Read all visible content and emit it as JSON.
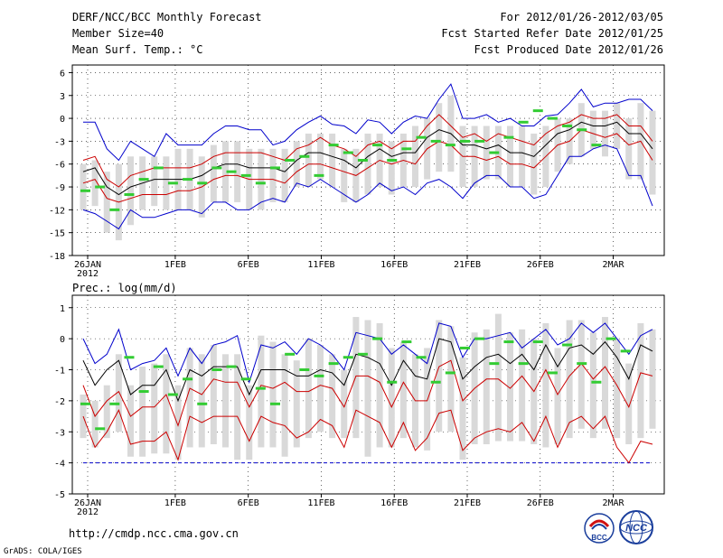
{
  "header": {
    "title": "DERF/NCC/BCC Monthly Forecast",
    "member_size": "Member Size=40",
    "variable": "Mean Surf. Temp.: °C",
    "period": "For 2012/01/26-2012/03/05",
    "start_date": "Fcst Started Refer Date 2012/01/25",
    "produced": "Fcst Produced Date 2012/01/26"
  },
  "footer": {
    "url": "http://cmdp.ncc.cma.gov.cn",
    "grads": "GrADS: COLA/IGES",
    "logo_bcc_text": "BCC",
    "logo_ncc_text": "NCC"
  },
  "colors": {
    "max_min": "#0000cc",
    "pct": "#cc0000",
    "mean": "#000000",
    "box": "#d9d9d9",
    "obs": "#33cc33",
    "grid": "#000000"
  },
  "chart_data": [
    {
      "type": "line",
      "title": "Mean Surf. Temp.: °C",
      "x_tick_labels": [
        "26JAN\n2012",
        "1FEB",
        "6FEB",
        "11FEB",
        "16FEB",
        "21FEB",
        "26FEB",
        "2MAR"
      ],
      "x_tick_days": [
        0,
        6,
        11,
        16,
        21,
        26,
        31,
        36
      ],
      "ylim": [
        -18,
        7
      ],
      "y_ticks": [
        6,
        3,
        0,
        -3,
        -6,
        -9,
        -12,
        -15,
        -18
      ],
      "days": 40,
      "series": [
        {
          "name": "max",
          "values": [
            -0.5,
            -0.5,
            -4,
            -5.5,
            -3,
            -4,
            -5,
            -2,
            -3.5,
            -3.5,
            -3.5,
            -2,
            -1,
            -1,
            -1.5,
            -1.5,
            -3.5,
            -3,
            -1.5,
            -0.5,
            0.3,
            -0.8,
            -1,
            -2,
            -0.2,
            -0.5,
            -2,
            -0.5,
            0.3,
            0,
            2.5,
            4.5,
            0,
            0,
            0.5,
            -0.5,
            0,
            -1,
            -1,
            0.3,
            0.5,
            2,
            3.8,
            1.5,
            2,
            2,
            2.5,
            2.5,
            1
          ]
        },
        {
          "name": "p75",
          "values": [
            -5.5,
            -5,
            -8,
            -9,
            -7.5,
            -7,
            -6.5,
            -6.5,
            -6.5,
            -6.5,
            -6,
            -5,
            -4.5,
            -4.5,
            -4.5,
            -4.5,
            -5,
            -5.5,
            -4,
            -3.5,
            -2.5,
            -3.5,
            -4,
            -5,
            -3.5,
            -3,
            -4,
            -3,
            -3,
            -1,
            0.5,
            -1,
            -2.5,
            -2,
            -3,
            -2,
            -2.5,
            -3,
            -3.5,
            -2,
            -1,
            -0.5,
            0.5,
            0,
            0,
            0.5,
            -1,
            -1,
            -3
          ]
        },
        {
          "name": "mean",
          "values": [
            -7,
            -6.5,
            -9,
            -10,
            -9,
            -8.5,
            -8,
            -8,
            -8,
            -8,
            -7.5,
            -6.5,
            -6,
            -6,
            -6.5,
            -6.5,
            -6.5,
            -7,
            -5.5,
            -4.5,
            -4.5,
            -5,
            -5.5,
            -6.5,
            -5,
            -4,
            -5,
            -4.5,
            -4.5,
            -2.5,
            -1.5,
            -2,
            -3.5,
            -3.5,
            -4,
            -3.5,
            -4.5,
            -4.5,
            -5,
            -3.5,
            -2,
            -1.5,
            -0.5,
            -1,
            -1,
            -0.5,
            -2,
            -2,
            -4
          ]
        },
        {
          "name": "p25",
          "values": [
            -8.5,
            -8,
            -10.5,
            -11,
            -10.5,
            -10,
            -10,
            -10,
            -9.5,
            -9.5,
            -9,
            -8,
            -7.5,
            -7.5,
            -8,
            -8,
            -8,
            -8.5,
            -7,
            -6,
            -6,
            -6.5,
            -7,
            -7.5,
            -6.5,
            -5.5,
            -6,
            -5.5,
            -6,
            -4,
            -3,
            -3.5,
            -5,
            -5,
            -5.5,
            -5,
            -6,
            -6,
            -6.5,
            -5,
            -3.5,
            -3,
            -1.5,
            -2,
            -2.5,
            -2,
            -3.5,
            -3,
            -5.5
          ]
        },
        {
          "name": "min",
          "values": [
            -12,
            -12.5,
            -13.5,
            -14.5,
            -12,
            -13,
            -13,
            -12.5,
            -12,
            -12,
            -12.5,
            -11,
            -11,
            -12,
            -12,
            -11,
            -10.5,
            -11,
            -8.5,
            -9,
            -8,
            -9,
            -10,
            -11,
            -10,
            -8.5,
            -9.5,
            -9,
            -10,
            -8.5,
            -8,
            -9,
            -10.5,
            -8.5,
            -7.5,
            -7.5,
            -9,
            -9,
            -10.5,
            -10,
            -7.5,
            -5,
            -5,
            -4,
            -3.5,
            -4,
            -7.5,
            -7.5,
            -11.5
          ]
        }
      ],
      "box_ranges": [
        [
          -12,
          -6
        ],
        [
          -11.5,
          -5.5
        ],
        [
          -15,
          -7
        ],
        [
          -16,
          -6
        ],
        [
          -14,
          -5
        ],
        [
          -12,
          -5
        ],
        [
          -11.5,
          -5
        ],
        [
          -12,
          -5
        ],
        [
          -12,
          -4
        ],
        [
          -12,
          -4
        ],
        [
          -13,
          -5
        ],
        [
          -11,
          -3.5
        ],
        [
          -11,
          -3
        ],
        [
          -11,
          -3
        ],
        [
          -12,
          -4
        ],
        [
          -12,
          -4
        ],
        [
          -11,
          -4
        ],
        [
          -11,
          -4
        ],
        [
          -9,
          -3
        ],
        [
          -9,
          -2
        ],
        [
          -8,
          -2
        ],
        [
          -9,
          -2
        ],
        [
          -11,
          -4
        ],
        [
          -11,
          -4
        ],
        [
          -10,
          -2
        ],
        [
          -9,
          -2
        ],
        [
          -10,
          -3
        ],
        [
          -9,
          -2
        ],
        [
          -9,
          -1
        ],
        [
          -8,
          0
        ],
        [
          -7,
          2
        ],
        [
          -7,
          3
        ],
        [
          -9,
          -1
        ],
        [
          -9,
          -1
        ],
        [
          -8,
          -1
        ],
        [
          -8,
          -1
        ],
        [
          -9,
          -1
        ],
        [
          -9,
          -1
        ],
        [
          -10,
          -2
        ],
        [
          -9,
          -1
        ],
        [
          -7,
          0
        ],
        [
          -6,
          0
        ],
        [
          -5,
          2
        ],
        [
          -4,
          1
        ],
        [
          -5,
          1
        ],
        [
          -4,
          2
        ],
        [
          -8,
          0
        ],
        [
          -8,
          2
        ],
        [
          -10,
          1
        ]
      ],
      "obs": [
        -9.5,
        -9,
        -12,
        -10,
        -8,
        -6.5,
        -8.5,
        -8,
        -8.5,
        -6.5,
        -7,
        -7.5,
        -8.5,
        -6.5,
        -5.5,
        -5,
        -7.5,
        -3.5,
        -4.5,
        -5.5,
        -3.5,
        -5.5,
        -4,
        -2.5,
        -3,
        -3.5,
        -3,
        -3,
        -4.5,
        -2.5,
        -0.5,
        1,
        0,
        -1,
        -1.5,
        -3.5
      ]
    },
    {
      "type": "line",
      "title": "Prec.: log(mm/d)",
      "x_tick_labels": [
        "26JAN\n2012",
        "1FEB",
        "6FEB",
        "11FEB",
        "16FEB",
        "21FEB",
        "26FEB",
        "2MAR"
      ],
      "x_tick_days": [
        0,
        6,
        11,
        16,
        21,
        26,
        31,
        36
      ],
      "ylim": [
        -5,
        1.4
      ],
      "y_ticks": [
        1,
        0,
        -1,
        -2,
        -3,
        -4,
        -5
      ],
      "days": 40,
      "series": [
        {
          "name": "max",
          "values": [
            0,
            -0.8,
            -0.5,
            0.3,
            -1,
            -0.8,
            -0.7,
            -0.3,
            -1.2,
            -0.3,
            -0.8,
            -0.2,
            -0.1,
            0.1,
            -1.4,
            -0.2,
            -0.3,
            -0.1,
            -0.5,
            0,
            -0.2,
            -0.5,
            -1,
            0.2,
            0.1,
            0,
            -0.5,
            -0.2,
            -0.5,
            -0.8,
            0.5,
            0.4,
            -0.6,
            0,
            0,
            0.1,
            0.2,
            -0.3,
            0,
            0.3,
            -0.2,
            0,
            0.5,
            0.2,
            0.5,
            0,
            -0.5,
            0.1,
            0.3
          ]
        },
        {
          "name": "mean",
          "values": [
            -0.7,
            -1.5,
            -1,
            -0.7,
            -1.8,
            -1.5,
            -1.5,
            -1,
            -2,
            -1,
            -1.2,
            -0.9,
            -0.9,
            -0.9,
            -1.8,
            -1,
            -1,
            -1,
            -1.2,
            -1.2,
            -1,
            -1.1,
            -1.5,
            -0.5,
            -0.6,
            -0.8,
            -1.5,
            -0.7,
            -1.2,
            -1.3,
            0,
            -0.1,
            -1.3,
            -0.9,
            -0.6,
            -0.5,
            -0.8,
            -0.5,
            -1,
            -0.2,
            -0.9,
            -0.3,
            -0.2,
            -0.5,
            -0.1,
            -0.6,
            -1.3,
            -0.2,
            -0.4
          ]
        },
        {
          "name": "p25",
          "values": [
            -1.5,
            -2.5,
            -2,
            -1.7,
            -2.5,
            -2.2,
            -2.2,
            -1.8,
            -2.8,
            -1.6,
            -1.8,
            -1.3,
            -1.4,
            -1.4,
            -2.2,
            -1.5,
            -1.6,
            -1.4,
            -1.7,
            -1.7,
            -1.5,
            -1.6,
            -2.2,
            -1.2,
            -1.2,
            -1.4,
            -2.2,
            -1.4,
            -2,
            -2,
            -0.9,
            -0.7,
            -2,
            -1.6,
            -1.3,
            -1.3,
            -1.6,
            -1.2,
            -1.7,
            -1,
            -1.8,
            -1.2,
            -0.8,
            -1.3,
            -0.9,
            -1.5,
            -2.2,
            -1.1,
            -1.2
          ]
        },
        {
          "name": "p10",
          "values": [
            -2.5,
            -3.5,
            -3,
            -2.3,
            -3.4,
            -3.3,
            -3.3,
            -3,
            -3.9,
            -2.5,
            -2.7,
            -2.5,
            -2.5,
            -2.5,
            -3.3,
            -2.5,
            -2.7,
            -2.8,
            -3.2,
            -3,
            -2.6,
            -2.8,
            -3.5,
            -2.3,
            -2.5,
            -2.7,
            -3.5,
            -2.7,
            -3.6,
            -3.2,
            -2.4,
            -2.3,
            -3.6,
            -3.2,
            -3,
            -2.9,
            -3,
            -2.7,
            -3.3,
            -2.5,
            -3.5,
            -2.7,
            -2.5,
            -2.9,
            -2.5,
            -3.5,
            -4,
            -3.3,
            -3.4
          ]
        }
      ],
      "floor_line": -4,
      "box_ranges": [
        [
          -3.2,
          -1.8
        ],
        [
          -3.5,
          -2
        ],
        [
          -3.2,
          -1.5
        ],
        [
          -3,
          -0.5
        ],
        [
          -3.8,
          -1.5
        ],
        [
          -3.8,
          -0.9
        ],
        [
          -3.7,
          -0.8
        ],
        [
          -3.7,
          -0.5
        ],
        [
          -3.9,
          -1.5
        ],
        [
          -3.5,
          -0.3
        ],
        [
          -3.5,
          -0.5
        ],
        [
          -3.4,
          -0.2
        ],
        [
          -3.5,
          -0.5
        ],
        [
          -3.9,
          -0.5
        ],
        [
          -3.9,
          -1.5
        ],
        [
          -3.5,
          0.1
        ],
        [
          -3.5,
          -0.1
        ],
        [
          -3.8,
          -0.5
        ],
        [
          -3.5,
          -0.7
        ],
        [
          -3.2,
          0
        ],
        [
          -3,
          -0.2
        ],
        [
          -3.2,
          -0.5
        ],
        [
          -3.2,
          -1
        ],
        [
          -3.2,
          0.7
        ],
        [
          -3.8,
          0.6
        ],
        [
          -3.5,
          0.5
        ],
        [
          -3.5,
          -0.3
        ],
        [
          -3.2,
          -0.1
        ],
        [
          -3.5,
          -0.5
        ],
        [
          -3.6,
          -0.3
        ],
        [
          -3,
          0.6
        ],
        [
          -3,
          0.4
        ],
        [
          -3.9,
          -0.6
        ],
        [
          -3.4,
          0.2
        ],
        [
          -3.4,
          0.3
        ],
        [
          -3.3,
          0.8
        ],
        [
          -3.3,
          0.2
        ],
        [
          -3.3,
          0.3
        ],
        [
          -3.4,
          0
        ],
        [
          -3.5,
          0.5
        ],
        [
          -3.4,
          -0.3
        ],
        [
          -3.2,
          0.6
        ],
        [
          -2.9,
          0.6
        ],
        [
          -3.2,
          0.2
        ],
        [
          -2.9,
          0.7
        ],
        [
          -3.2,
          0
        ],
        [
          -3.4,
          -0.8
        ],
        [
          -3.2,
          0.5
        ],
        [
          -2.9,
          0.3
        ]
      ],
      "obs": [
        -2.1,
        -2.9,
        -2.1,
        -0.6,
        -1.7,
        -0.9,
        -1.8,
        -1.3,
        -2.1,
        -1,
        -0.9,
        -1.3,
        -1.6,
        -2.1,
        -0.5,
        -1,
        -1.2,
        -0.8,
        -0.6,
        -0.5,
        0,
        -1.4,
        -0.1,
        -0.6,
        -1.4,
        -1.1,
        -0.3,
        0,
        -0.8,
        -0.1,
        -0.8,
        -0.1,
        -1.1,
        -0.2,
        -0.8,
        -1.4,
        0,
        -0.4
      ]
    }
  ]
}
